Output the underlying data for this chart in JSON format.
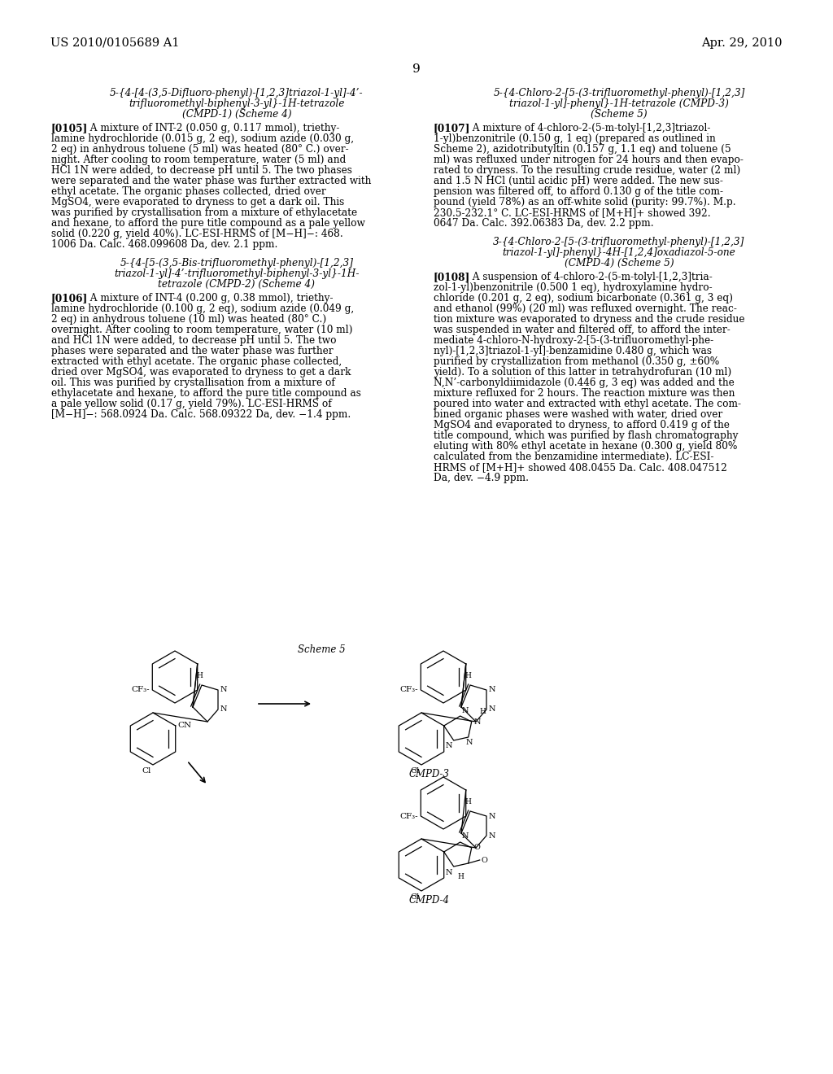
{
  "bg_color": "#ffffff",
  "header_left": "US 2010/0105689 A1",
  "header_right": "Apr. 29, 2010",
  "page_number": "9",
  "scheme_label": "Scheme 5",
  "cmpd3_label": "CMPD-3",
  "cmpd4_label": "CMPD-4",
  "col1_title1_lines": [
    "5-{4-[4-(3,5-Difluoro-phenyl)-[1,2,3]triazol-1-yl]-4’-",
    "trifluoromethyl-biphenyl-3-yl}-1H-tetrazole",
    "(CMPD-1) (Scheme 4)"
  ],
  "col1_para1_label": "[0105]",
  "col1_para1_lines": [
    "A mixture of INT-2 (0.050 g, 0.117 mmol), triethy-",
    "lamine hydrochloride (0.015 g, 2 eq), sodium azide (0.030 g,",
    "2 eq) in anhydrous toluene (5 ml) was heated (80° C.) over-",
    "night. After cooling to room temperature, water (5 ml) and",
    "HCl 1N were added, to decrease pH until 5. The two phases",
    "were separated and the water phase was further extracted with",
    "ethyl acetate. The organic phases collected, dried over",
    "MgSO4, were evaporated to dryness to get a dark oil. This",
    "was purified by crystallisation from a mixture of ethylacetate",
    "and hexane, to afford the pure title compound as a pale yellow",
    "solid (0.220 g, yield 40%). LC-ESI-HRMS of [M−H]−: 468.",
    "1006 Da. Calc. 468.099608 Da, dev. 2.1 ppm."
  ],
  "col1_title2_lines": [
    "5-{4-[5-(3,5-Bis-trifluoromethyl-phenyl)-[1,2,3]",
    "triazol-1-yl]-4’-trifluoromethyl-biphenyl-3-yl}-1H-",
    "tetrazole (CMPD-2) (Scheme 4)"
  ],
  "col1_para2_label": "[0106]",
  "col1_para2_lines": [
    "A mixture of INT-4 (0.200 g, 0.38 mmol), triethy-",
    "lamine hydrochloride (0.100 g, 2 eq), sodium azide (0.049 g,",
    "2 eq) in anhydrous toluene (10 ml) was heated (80° C.)",
    "overnight. After cooling to room temperature, water (10 ml)",
    "and HCl 1N were added, to decrease pH until 5. The two",
    "phases were separated and the water phase was further",
    "extracted with ethyl acetate. The organic phase collected,",
    "dried over MgSO4, was evaporated to dryness to get a dark",
    "oil. This was purified by crystallisation from a mixture of",
    "ethylacetate and hexane, to afford the pure title compound as",
    "a pale yellow solid (0.17 g, yield 79%). LC-ESI-HRMS of",
    "[M−H]−: 568.0924 Da. Calc. 568.09322 Da, dev. −1.4 ppm."
  ],
  "col2_title1_lines": [
    "5-{4-Chloro-2-[5-(3-trifluoromethyl-phenyl)-[1,2,3]",
    "triazol-1-yl]-phenyl}-1H-tetrazole (CMPD-3)",
    "(Scheme 5)"
  ],
  "col2_para1_label": "[0107]",
  "col2_para1_lines": [
    "A mixture of 4-chloro-2-(5-m-tolyl-[1,2,3]triazol-",
    "1-yl)benzonitrile (0.150 g, 1 eq) (prepared as outlined in",
    "Scheme 2), azidotributyltin (0.157 g, 1.1 eq) and toluene (5",
    "ml) was refluxed under nitrogen for 24 hours and then evapo-",
    "rated to dryness. To the resulting crude residue, water (2 ml)",
    "and 1.5 N HCl (until acidic pH) were added. The new sus-",
    "pension was filtered off, to afford 0.130 g of the title com-",
    "pound (yield 78%) as an off-white solid (purity: 99.7%). M.p.",
    "230.5-232.1° C. LC-ESI-HRMS of [M+H]+ showed 392.",
    "0647 Da. Calc. 392.06383 Da, dev. 2.2 ppm."
  ],
  "col2_title2_lines": [
    "3-{4-Chloro-2-[5-(3-trifluoromethyl-phenyl)-[1,2,3]",
    "triazol-1-yl]-phenyl}-4H-[1,2,4]oxadiazol-5-one",
    "(CMPD-4) (Scheme 5)"
  ],
  "col2_para2_label": "[0108]",
  "col2_para2_lines": [
    "A suspension of 4-chloro-2-(5-m-tolyl-[1,2,3]tria-",
    "zol-1-yl)benzonitrile (0.500 1 eq), hydroxylamine hydro-",
    "chloride (0.201 g, 2 eq), sodium bicarbonate (0.361 g, 3 eq)",
    "and ethanol (99%) (20 ml) was refluxed overnight. The reac-",
    "tion mixture was evaporated to dryness and the crude residue",
    "was suspended in water and filtered off, to afford the inter-",
    "mediate 4-chloro-N-hydroxy-2-[5-(3-trifluoromethyl-phe-",
    "nyl)-[1,2,3]triazol-1-yl]-benzamidine 0.480 g, which was",
    "purified by crystallization from methanol (0.350 g, ±60%",
    "yield). To a solution of this latter in tetrahydrofuran (10 ml)",
    "N,N’-carbonyldiimidazole (0.446 g, 3 eq) was added and the",
    "mixture refluxed for 2 hours. The reaction mixture was then",
    "poured into water and extracted with ethyl acetate. The com-",
    "bined organic phases were washed with water, dried over",
    "MgSO4 and evaporated to dryness, to afford 0.419 g of the",
    "title compound, which was purified by flash chromatography",
    "eluting with 80% ethyl acetate in hexane (0.300 g, yield 80%",
    "calculated from the benzamidine intermediate). LC-ESI-",
    "HRMS of [M+H]+ showed 408.0455 Da. Calc. 408.047512",
    "Da, dev. −4.9 ppm."
  ]
}
